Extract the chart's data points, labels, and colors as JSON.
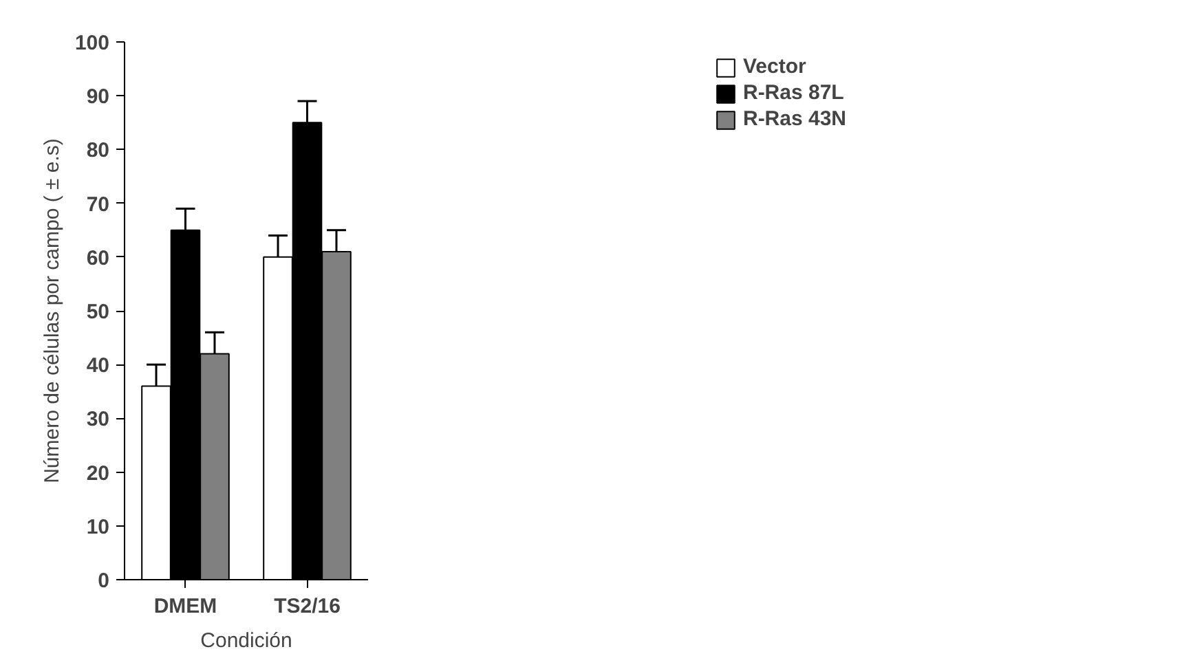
{
  "chart_data": {
    "type": "bar",
    "xlabel": "Condición",
    "ylabel": "Número de células por campo ( ± e.s)",
    "categories": [
      "DMEM",
      "TS2/16"
    ],
    "series": [
      {
        "name": "Vector",
        "color": "#ffffff",
        "values": [
          36,
          60
        ],
        "errors": [
          4,
          4
        ]
      },
      {
        "name": "R-Ras 87L",
        "color": "#000000",
        "values": [
          65,
          85
        ],
        "errors": [
          4,
          4
        ]
      },
      {
        "name": "R-Ras 43N",
        "color": "#808080",
        "values": [
          42,
          61
        ],
        "errors": [
          4,
          4
        ]
      }
    ],
    "ylim": [
      0,
      100
    ],
    "yticks": [
      0,
      10,
      20,
      30,
      40,
      50,
      60,
      70,
      80,
      90,
      100
    ],
    "grid": false,
    "legend": "top right"
  }
}
